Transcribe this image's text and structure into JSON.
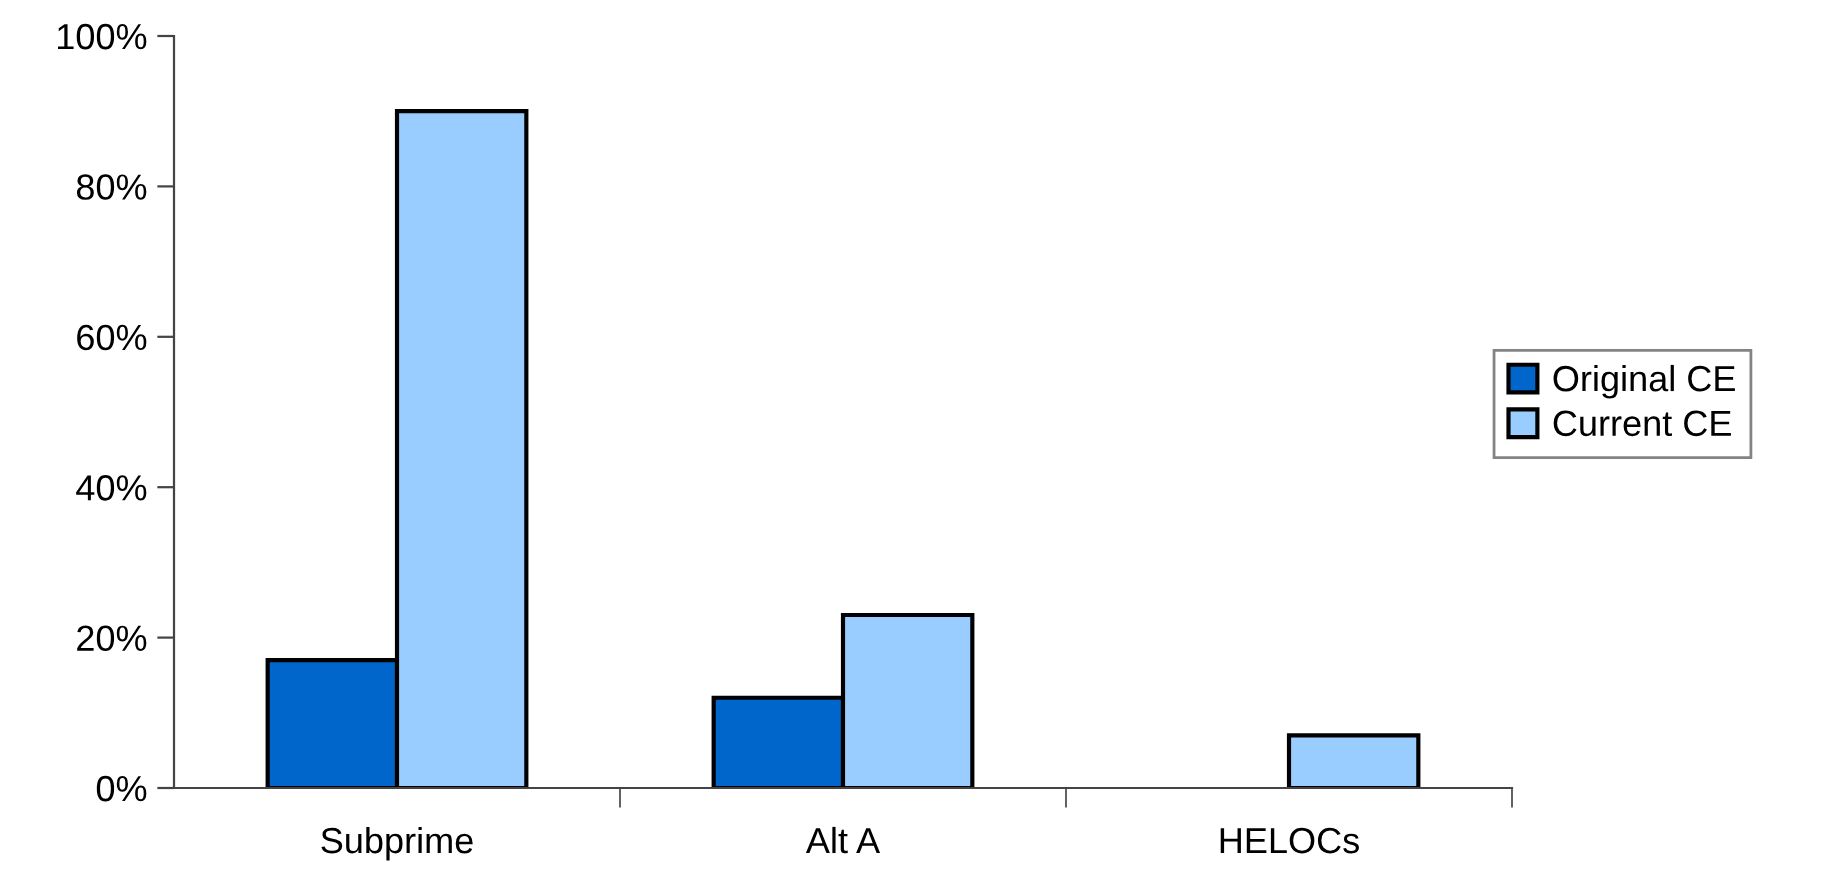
{
  "chart_data": {
    "type": "bar",
    "categories": [
      "Subprime",
      "Alt A",
      "HELOCs"
    ],
    "series": [
      {
        "name": "Original CE",
        "color": "#0066cc",
        "values": [
          17,
          12,
          null
        ]
      },
      {
        "name": "Current CE",
        "color": "#99ccff",
        "values": [
          90,
          23,
          7
        ]
      }
    ],
    "ylim": [
      0,
      100
    ],
    "yticks": [
      {
        "value": 0,
        "label": "0%"
      },
      {
        "value": 20,
        "label": "20%"
      },
      {
        "value": 40,
        "label": "40%"
      },
      {
        "value": 60,
        "label": "60%"
      },
      {
        "value": 80,
        "label": "80%"
      },
      {
        "value": 100,
        "label": "100%"
      }
    ],
    "grid": false,
    "legend": "right"
  }
}
